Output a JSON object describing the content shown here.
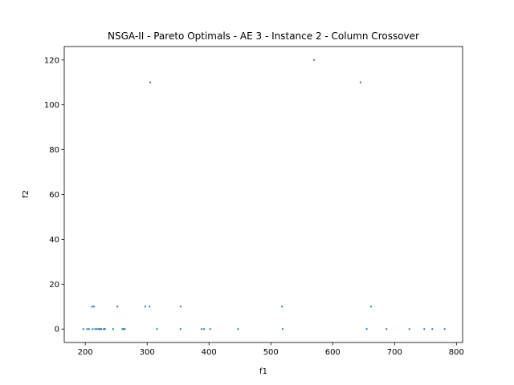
{
  "chart_data": {
    "type": "scatter",
    "title": "NSGA-II - Pareto Optimals - AE 3 - Instance 2 - Column Crossover",
    "xlabel": "f1",
    "ylabel": "f2",
    "xlim": [
      166,
      810
    ],
    "ylim": [
      -6,
      126
    ],
    "xticks": [
      200,
      300,
      400,
      500,
      600,
      700,
      800
    ],
    "yticks": [
      0,
      20,
      40,
      60,
      80,
      100,
      120
    ],
    "grid": false,
    "color": "#1f77b4",
    "points": [
      {
        "x": 197,
        "y": 0
      },
      {
        "x": 203,
        "y": 0
      },
      {
        "x": 206,
        "y": 0
      },
      {
        "x": 212,
        "y": 0
      },
      {
        "x": 216,
        "y": 0
      },
      {
        "x": 219,
        "y": 0
      },
      {
        "x": 222,
        "y": 0
      },
      {
        "x": 224,
        "y": 0
      },
      {
        "x": 226,
        "y": 0
      },
      {
        "x": 230,
        "y": 0
      },
      {
        "x": 232,
        "y": 0
      },
      {
        "x": 245,
        "y": 0
      },
      {
        "x": 260,
        "y": 0
      },
      {
        "x": 262,
        "y": 0
      },
      {
        "x": 264,
        "y": 0
      },
      {
        "x": 316,
        "y": 0
      },
      {
        "x": 354,
        "y": 0
      },
      {
        "x": 388,
        "y": 0
      },
      {
        "x": 392,
        "y": 0
      },
      {
        "x": 402,
        "y": 0
      },
      {
        "x": 447,
        "y": 0
      },
      {
        "x": 519,
        "y": 0
      },
      {
        "x": 655,
        "y": 0
      },
      {
        "x": 687,
        "y": 0
      },
      {
        "x": 724,
        "y": 0
      },
      {
        "x": 748,
        "y": 0
      },
      {
        "x": 761,
        "y": 0
      },
      {
        "x": 781,
        "y": 0
      },
      {
        "x": 211,
        "y": 10
      },
      {
        "x": 214,
        "y": 10
      },
      {
        "x": 252,
        "y": 10
      },
      {
        "x": 297,
        "y": 10
      },
      {
        "x": 304,
        "y": 10
      },
      {
        "x": 354,
        "y": 10
      },
      {
        "x": 518,
        "y": 10
      },
      {
        "x": 662,
        "y": 10
      },
      {
        "x": 305,
        "y": 110
      },
      {
        "x": 645,
        "y": 110
      },
      {
        "x": 570,
        "y": 120
      }
    ]
  }
}
